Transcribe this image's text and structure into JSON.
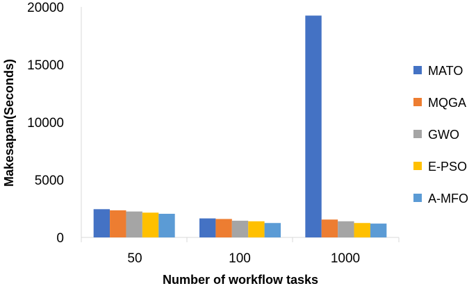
{
  "chart_data": {
    "type": "bar",
    "title": "",
    "xlabel": "Number of workflow tasks",
    "ylabel": "Makesapan(Seconds)",
    "categories": [
      "50",
      "100",
      "1000"
    ],
    "ylim": [
      0,
      20000
    ],
    "yticks": [
      "0",
      "5000",
      "10000",
      "15000",
      "20000"
    ],
    "grid": false,
    "legend_position": "right",
    "series": [
      {
        "name": "MATO",
        "color": "#4472C4",
        "values": [
          2450,
          1650,
          19250
        ]
      },
      {
        "name": "MQGA",
        "color": "#ED7D31",
        "values": [
          2350,
          1600,
          1550
        ]
      },
      {
        "name": "GWO",
        "color": "#A5A5A5",
        "values": [
          2250,
          1450,
          1400
        ]
      },
      {
        "name": "E-PSO",
        "color": "#FFC000",
        "values": [
          2150,
          1400,
          1250
        ]
      },
      {
        "name": "A-MFO",
        "color": "#5B9BD5",
        "values": [
          2050,
          1250,
          1200
        ]
      }
    ]
  }
}
